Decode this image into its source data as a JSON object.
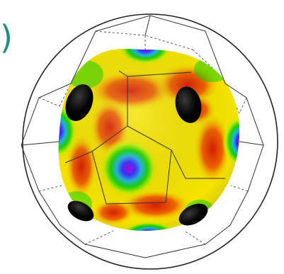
{
  "figure": {
    "panel_label": ")",
    "colors": {
      "label": "#1f8a8a",
      "outline": "#222222",
      "polyhedron_solid": "#333333",
      "polyhedron_dashed": "#444444",
      "background": "#ffffff",
      "map_high": "#d81e00",
      "map_mid": "#f5e400",
      "map_low": "#17d400",
      "map_min": "#1a3cff",
      "map_core": "#a400e8",
      "spike": "#000000"
    },
    "colormap_stops": [
      "purple",
      "blue",
      "cyan",
      "green",
      "yellow",
      "orange",
      "red"
    ],
    "elements": [
      "bounding-sphere",
      "truncated-polyhedron-wireframe",
      "colored-spherical-surface",
      "black-spikes"
    ]
  }
}
